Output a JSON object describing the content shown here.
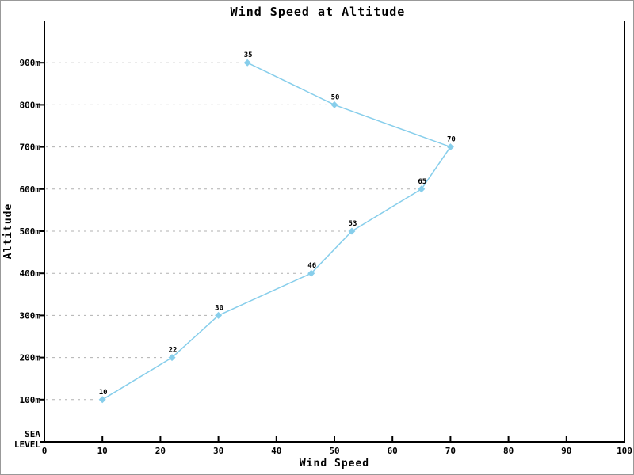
{
  "chart_data": {
    "type": "line",
    "title": "Wind Speed at Altitude",
    "xlabel": "Wind Speed",
    "ylabel": "Altitude",
    "xlim": [
      0,
      100
    ],
    "ylim": [
      0,
      1000
    ],
    "x_tick_values": [
      0,
      10,
      20,
      30,
      40,
      50,
      60,
      70,
      80,
      90,
      100
    ],
    "y_tick_values": [
      0,
      100,
      200,
      300,
      400,
      500,
      600,
      700,
      800,
      900
    ],
    "y_tick_labels": [
      "SEA LEVEL",
      "100m",
      "200m",
      "300m",
      "400m",
      "500m",
      "600m",
      "700m",
      "800m",
      "900m"
    ],
    "grid": "dashed horizontal lines from y-axis to each data point",
    "legend": "none",
    "colors": {
      "series": "#87CEEB",
      "grid": "#b0b0b0",
      "axis": "#000000",
      "frame_border": "#999999",
      "background": "#ffffff"
    },
    "series": [
      {
        "name": "Wind Speed",
        "color": "#87CEEB",
        "points": [
          {
            "x": 10,
            "y": 100,
            "label": "10"
          },
          {
            "x": 22,
            "y": 200,
            "label": "22"
          },
          {
            "x": 30,
            "y": 300,
            "label": "30"
          },
          {
            "x": 46,
            "y": 400,
            "label": "46"
          },
          {
            "x": 53,
            "y": 500,
            "label": "53"
          },
          {
            "x": 65,
            "y": 600,
            "label": "65"
          },
          {
            "x": 70,
            "y": 700,
            "label": "70"
          },
          {
            "x": 50,
            "y": 800,
            "label": "50"
          },
          {
            "x": 35,
            "y": 900,
            "label": "35"
          }
        ]
      }
    ]
  }
}
